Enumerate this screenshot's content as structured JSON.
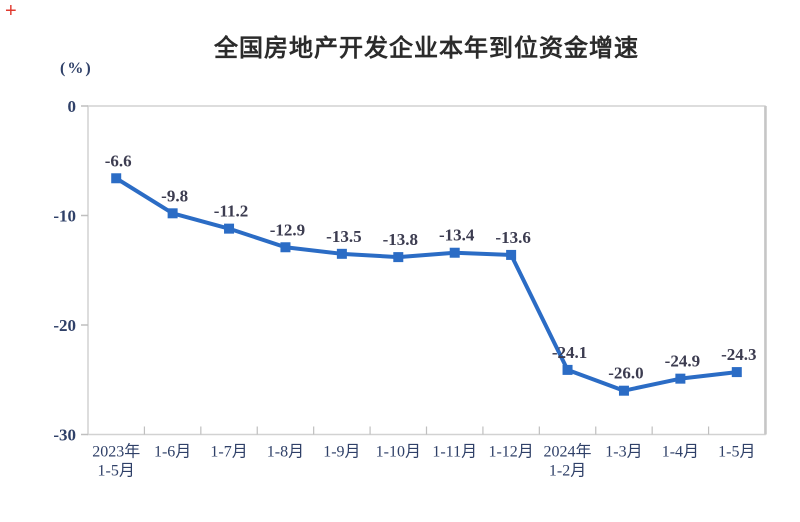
{
  "page": {
    "plus_icon": "+"
  },
  "chart_data": {
    "type": "line",
    "title": "全国房地产开发企业本年到位资金增速",
    "unit_label": "(%)",
    "categories": [
      "2023年\n1-5月",
      "1-6月",
      "1-7月",
      "1-8月",
      "1-9月",
      "1-10月",
      "1-11月",
      "1-12月",
      "2024年\n1-2月",
      "1-3月",
      "1-4月",
      "1-5月"
    ],
    "values": [
      -6.6,
      -9.8,
      -11.2,
      -12.9,
      -13.5,
      -13.8,
      -13.4,
      -13.6,
      -24.1,
      -26.0,
      -24.9,
      -24.3
    ],
    "point_labels": [
      "-6.6",
      "-9.8",
      "-11.2",
      "-12.9",
      "-13.5",
      "-13.8",
      "-13.4",
      "-13.6",
      "-24.1",
      "-26.0",
      "-24.9",
      "-24.3"
    ],
    "xlabel": "",
    "ylabel": "(%)",
    "ylim": [
      -30,
      0
    ],
    "yticks": [
      0,
      -10,
      -20,
      -30
    ],
    "grid": false,
    "legend": "none",
    "marker": "square",
    "colors": {
      "line": "#2b6cc5",
      "marker": "#2b6cc5",
      "axis_text": "#2f4068",
      "data_label_text": "#3c3c50",
      "title_text": "#2b2b2b",
      "plot_border": "#d2d2d2",
      "plot_border_right": "#c6c6c6",
      "tick": "#bfbfbf",
      "plus": "#e03a2f"
    }
  }
}
